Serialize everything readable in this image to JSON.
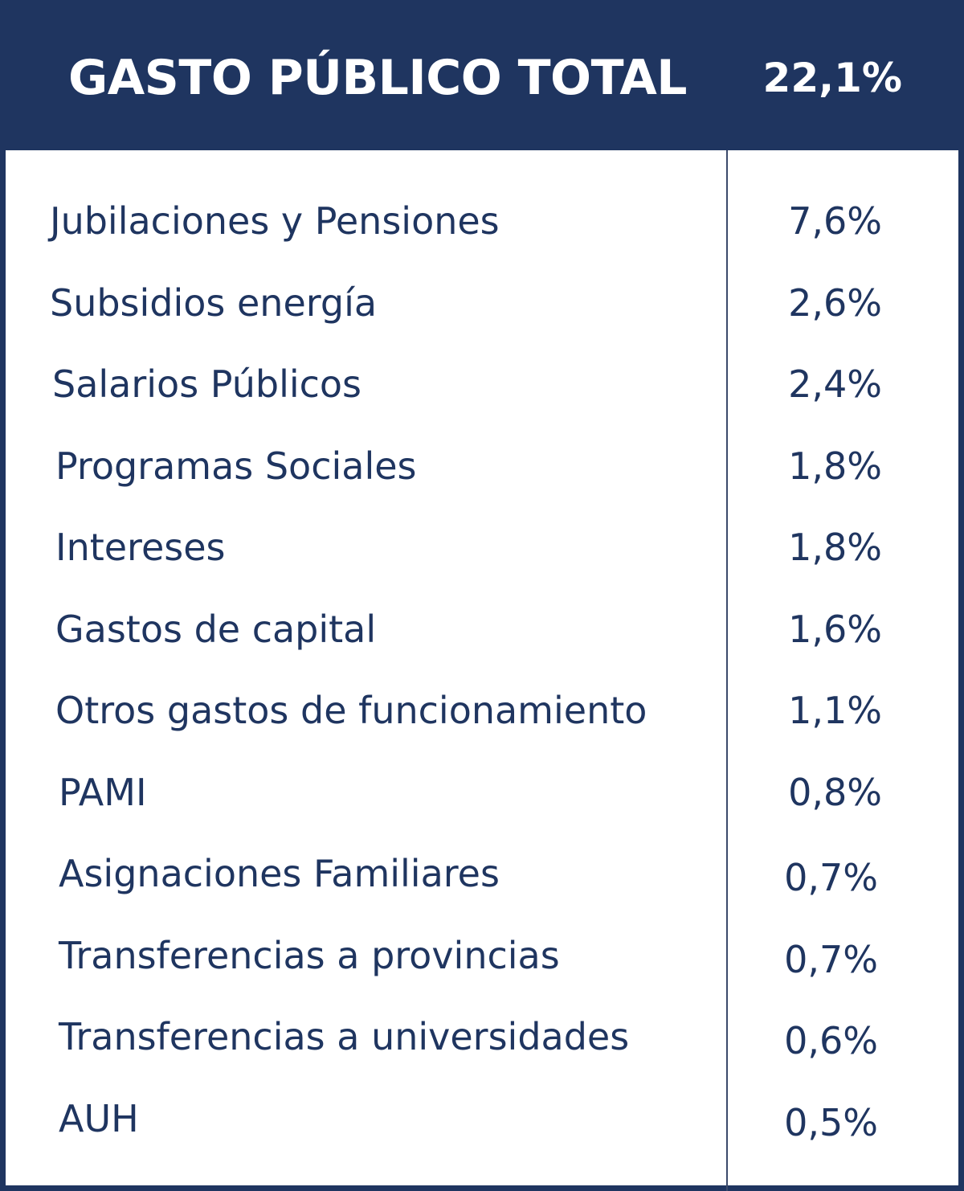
{
  "header": {
    "title": "GASTO PÚBLICO TOTAL",
    "value": "22,1%"
  },
  "table": {
    "rows": [
      [
        "Jubilaciones y Pensiones",
        "7,6%"
      ],
      [
        "Subsidios energía",
        "2,6%"
      ],
      [
        "Salarios Públicos",
        "2,4%"
      ],
      [
        "Programas Sociales",
        "1,8%"
      ],
      [
        "Intereses",
        "1,8%"
      ],
      [
        "Gastos de capital",
        "1,6%"
      ],
      [
        "Otros gastos de funcionamiento",
        "1,1%"
      ],
      [
        "PAMI",
        "0,8%"
      ],
      [
        "Asignaciones Familiares",
        "0,7%"
      ],
      [
        "Transferencias a provincias",
        "0,7%"
      ],
      [
        "Transferencias a universidades",
        "0,6%"
      ],
      [
        "AUH",
        "0,5%"
      ]
    ]
  }
}
